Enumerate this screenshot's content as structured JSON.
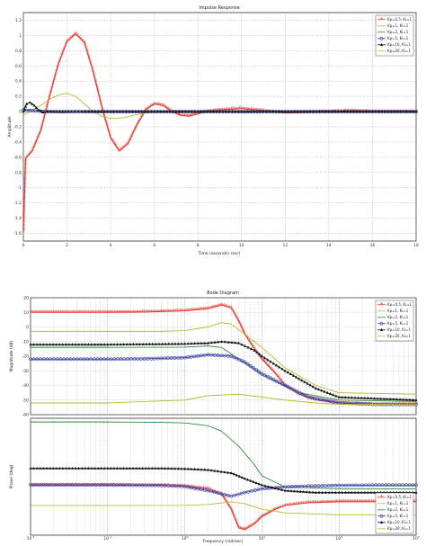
{
  "chart_data": [
    {
      "type": "line",
      "title": "Impulse Response",
      "xlabel": "Time (seconds) (sec)",
      "ylabel": "Amplitude",
      "xlim": [
        0,
        18
      ],
      "ylim": [
        -1.7,
        1.3
      ],
      "xticks": [
        0,
        2,
        4,
        6,
        8,
        10,
        12,
        14,
        16,
        18
      ],
      "yticks": [
        1.2,
        1,
        0.8,
        0.6,
        0.4,
        0.2,
        0,
        -0.2,
        -0.4,
        -0.6,
        -0.8,
        -1,
        -1.2,
        -1.4,
        -1.6
      ],
      "grid": true,
      "legend_position": "top-right",
      "legend": [
        "Kp=0.5, Ki=1",
        "Kp=1, Ki=1",
        "Kp=2, Ki=1",
        "Kp=5, Ki=1",
        "Kp=10, Ki=1",
        "Kp=20, Ki=1"
      ],
      "series": [
        {
          "color": "#e23a2c",
          "marker": "star",
          "x": [
            0,
            0.1,
            0.4,
            0.8,
            1.2,
            1.6,
            2.0,
            2.4,
            2.8,
            3.2,
            3.6,
            4.0,
            4.4,
            4.8,
            5.2,
            5.6,
            6.0,
            6.4,
            6.8,
            7.2,
            7.6,
            8.0,
            8.4,
            9.0,
            10.0,
            11.0,
            12.0,
            13.0,
            14.0,
            15.0,
            16.0,
            17.0,
            18.0
          ],
          "values": [
            -1.58,
            -0.62,
            -0.52,
            -0.25,
            0.2,
            0.62,
            0.92,
            1.02,
            0.9,
            0.52,
            0.05,
            -0.35,
            -0.52,
            -0.42,
            -0.18,
            0.02,
            0.1,
            0.08,
            0.0,
            -0.05,
            -0.06,
            -0.03,
            0.0,
            0.02,
            0.04,
            0.01,
            -0.02,
            -0.01,
            0.0,
            0.01,
            0.0,
            0.0,
            0.0
          ]
        },
        {
          "color": "#b8bc2e",
          "marker": "none",
          "x": [
            0,
            0.4,
            0.8,
            1.2,
            1.6,
            2.0,
            2.4,
            2.8,
            3.2,
            3.6,
            4.0,
            4.6,
            5.2,
            6.0,
            7.0,
            8.0,
            10.0,
            12.0,
            18.0
          ],
          "values": [
            -0.05,
            0.02,
            0.08,
            0.16,
            0.22,
            0.24,
            0.2,
            0.1,
            0.0,
            -0.06,
            -0.09,
            -0.08,
            -0.04,
            0.0,
            0.01,
            0.0,
            0.0,
            0.0,
            0.0
          ]
        },
        {
          "color": "#2e8b3a",
          "marker": "none",
          "x": [
            0,
            0.3,
            0.8,
            1.2,
            1.8,
            2.4,
            3.0,
            4.0,
            18.0
          ],
          "values": [
            0.0,
            0.03,
            0.02,
            0.01,
            -0.01,
            0.0,
            0.0,
            0.0,
            0.0
          ]
        },
        {
          "color": "#3a3fa8",
          "marker": "circle",
          "x": [
            0,
            0.4,
            1.0,
            2.0,
            3.0,
            4.0,
            5.0,
            6.0,
            7.0,
            8.0,
            9.0,
            10.0,
            11.0,
            12.0,
            13.0,
            14.0,
            15.0,
            16.0,
            17.0,
            18.0
          ],
          "values": [
            0.02,
            0.01,
            0.0,
            0.0,
            0.0,
            0.0,
            0.0,
            0.0,
            0.0,
            0.0,
            0.0,
            0.0,
            0.0,
            0.0,
            0.0,
            0.0,
            0.0,
            0.0,
            0.0,
            0.0
          ]
        },
        {
          "color": "#111111",
          "marker": "triangle",
          "x": [
            0,
            0.15,
            0.3,
            0.5,
            0.7,
            0.9,
            1.1,
            1.4,
            1.8,
            2.2,
            3.0,
            4.0,
            5.0,
            6.0,
            7.0,
            8.0,
            9.0,
            10.0,
            11.0,
            12.0,
            13.0,
            14.0,
            15.0,
            16.0,
            17.0,
            18.0
          ],
          "values": [
            0.0,
            0.1,
            0.12,
            0.08,
            0.02,
            -0.01,
            0.0,
            0.0,
            0.0,
            0.0,
            0.0,
            0.0,
            0.0,
            0.0,
            0.0,
            0.0,
            0.0,
            0.0,
            0.0,
            0.0,
            0.0,
            0.0,
            0.0,
            0.0,
            0.0,
            0.0
          ]
        }
      ]
    },
    {
      "type": "line",
      "title": "Bode Diagram",
      "xlabel": "Frequency (rad/sec)",
      "ylabel": "Magnitude (dB)",
      "x_scale": "log",
      "xlim": [
        0.01,
        1000
      ],
      "ylim": [
        -60,
        20
      ],
      "yticks": [
        20,
        10,
        0,
        -10,
        -20,
        -30,
        -40,
        -50,
        -60
      ],
      "grid": true,
      "legend_position": "top-right",
      "legend": [
        "Kp=0.5, Ki=1",
        "Kp=1, Ki=1",
        "Kp=2, Ki=1",
        "Kp=5, Ki=1",
        "Kp=10, Ki=1",
        "Kp=20, Ki=1"
      ],
      "series": [
        {
          "color": "#e23a2c",
          "marker": "star",
          "x": [
            0.01,
            0.03,
            0.1,
            0.3,
            1,
            2,
            3,
            4,
            5,
            6,
            8,
            10,
            15,
            20,
            30,
            50,
            100,
            300,
            1000
          ],
          "values": [
            10,
            10,
            10,
            10.2,
            11,
            12.5,
            15,
            13,
            4,
            -5,
            -15,
            -22,
            -32,
            -40,
            -46,
            -50,
            -52,
            -53,
            -53
          ]
        },
        {
          "color": "#b8bc2e",
          "marker": "none",
          "x": [
            0.01,
            0.1,
            0.5,
            1,
            2,
            3,
            4,
            6,
            10,
            20,
            50,
            100,
            1000
          ],
          "values": [
            -3,
            -3,
            -3,
            -2.5,
            0,
            3,
            2,
            -5,
            -14,
            -28,
            -40,
            -45,
            -46
          ]
        },
        {
          "color": "#2e8b3a",
          "marker": "none",
          "x": [
            0.01,
            0.1,
            1,
            2,
            3,
            5,
            10,
            30,
            100,
            1000
          ],
          "values": [
            -14,
            -14,
            -13.8,
            -13,
            -14,
            -22,
            -33,
            -45,
            -50,
            -51
          ]
        },
        {
          "color": "#3a3fa8",
          "marker": "circle",
          "x": [
            0.01,
            0.03,
            0.1,
            0.3,
            1,
            2,
            4,
            6,
            10,
            20,
            40,
            100,
            300,
            1000
          ],
          "values": [
            -22,
            -22,
            -22,
            -21.8,
            -21,
            -19,
            -20,
            -24,
            -32,
            -40,
            -48,
            -52,
            -53,
            -53
          ]
        },
        {
          "color": "#111111",
          "marker": "triangle",
          "x": [
            0.01,
            0.1,
            1,
            2,
            3,
            5,
            8,
            10,
            20,
            50,
            100,
            1000
          ],
          "values": [
            -12,
            -12,
            -11.5,
            -11,
            -10,
            -11,
            -16,
            -20,
            -30,
            -42,
            -48,
            -50
          ]
        },
        {
          "color": "#b8bc2e",
          "marker": "none",
          "x": [
            0.01,
            0.1,
            1,
            2,
            5,
            10,
            20,
            50,
            100,
            1000
          ],
          "values": [
            -52,
            -52,
            -50,
            -47,
            -46,
            -48,
            -50,
            -52,
            -53,
            -53
          ]
        }
      ]
    },
    {
      "type": "line",
      "xlabel": "Frequency (rad/sec)",
      "ylabel": "Phase (deg)",
      "x_scale": "log",
      "xlim": [
        0.01,
        1000
      ],
      "ylim": [
        -360,
        270
      ],
      "grid": true,
      "legend_position": "top-right",
      "legend": [
        "Kp=0.5, Ki=1",
        "Kp=1, Ki=1",
        "Kp=2, Ki=1",
        "Kp=5, Ki=1",
        "Kp=10, Ki=1",
        "Kp=20, Ki=1"
      ],
      "series": [
        {
          "color": "#2e8b3a",
          "marker": "none",
          "x": [
            0.01,
            0.1,
            0.5,
            1,
            2,
            3,
            5,
            8,
            10,
            20,
            100,
            1000
          ],
          "values": [
            250,
            250,
            248,
            245,
            230,
            200,
            120,
            20,
            -40,
            -100,
            -110,
            -110
          ]
        },
        {
          "color": "#e23a2c",
          "marker": "star",
          "x": [
            0.01,
            0.1,
            0.5,
            1,
            2,
            3,
            4,
            5,
            6,
            8,
            10,
            15,
            20,
            40,
            100,
            300,
            1000
          ],
          "values": [
            -90,
            -90,
            -92,
            -96,
            -110,
            -140,
            -220,
            -320,
            -330,
            -300,
            -260,
            -220,
            -200,
            -185,
            -180,
            -180,
            -180
          ]
        },
        {
          "color": "#3a3fa8",
          "marker": "circle",
          "x": [
            0.01,
            0.1,
            0.5,
            1,
            2,
            4,
            6,
            10,
            20,
            40,
            100,
            300,
            1000
          ],
          "values": [
            -90,
            -90,
            -92,
            -98,
            -120,
            -150,
            -130,
            -110,
            -100,
            -95,
            -92,
            -90,
            -90
          ]
        },
        {
          "color": "#111111",
          "marker": "triangle",
          "x": [
            0.01,
            0.1,
            0.5,
            1,
            2,
            4,
            6,
            10,
            20,
            50,
            100,
            1000
          ],
          "values": [
            0,
            0,
            0,
            -2,
            -8,
            -25,
            -55,
            -90,
            -120,
            -130,
            -130,
            -130
          ]
        },
        {
          "color": "#b8bc2e",
          "marker": "none",
          "x": [
            0.01,
            0.1,
            1,
            2,
            4,
            6,
            10,
            20,
            100,
            1000
          ],
          "values": [
            -200,
            -200,
            -199,
            -195,
            -180,
            -190,
            -220,
            -240,
            -250,
            -250
          ]
        }
      ]
    }
  ]
}
